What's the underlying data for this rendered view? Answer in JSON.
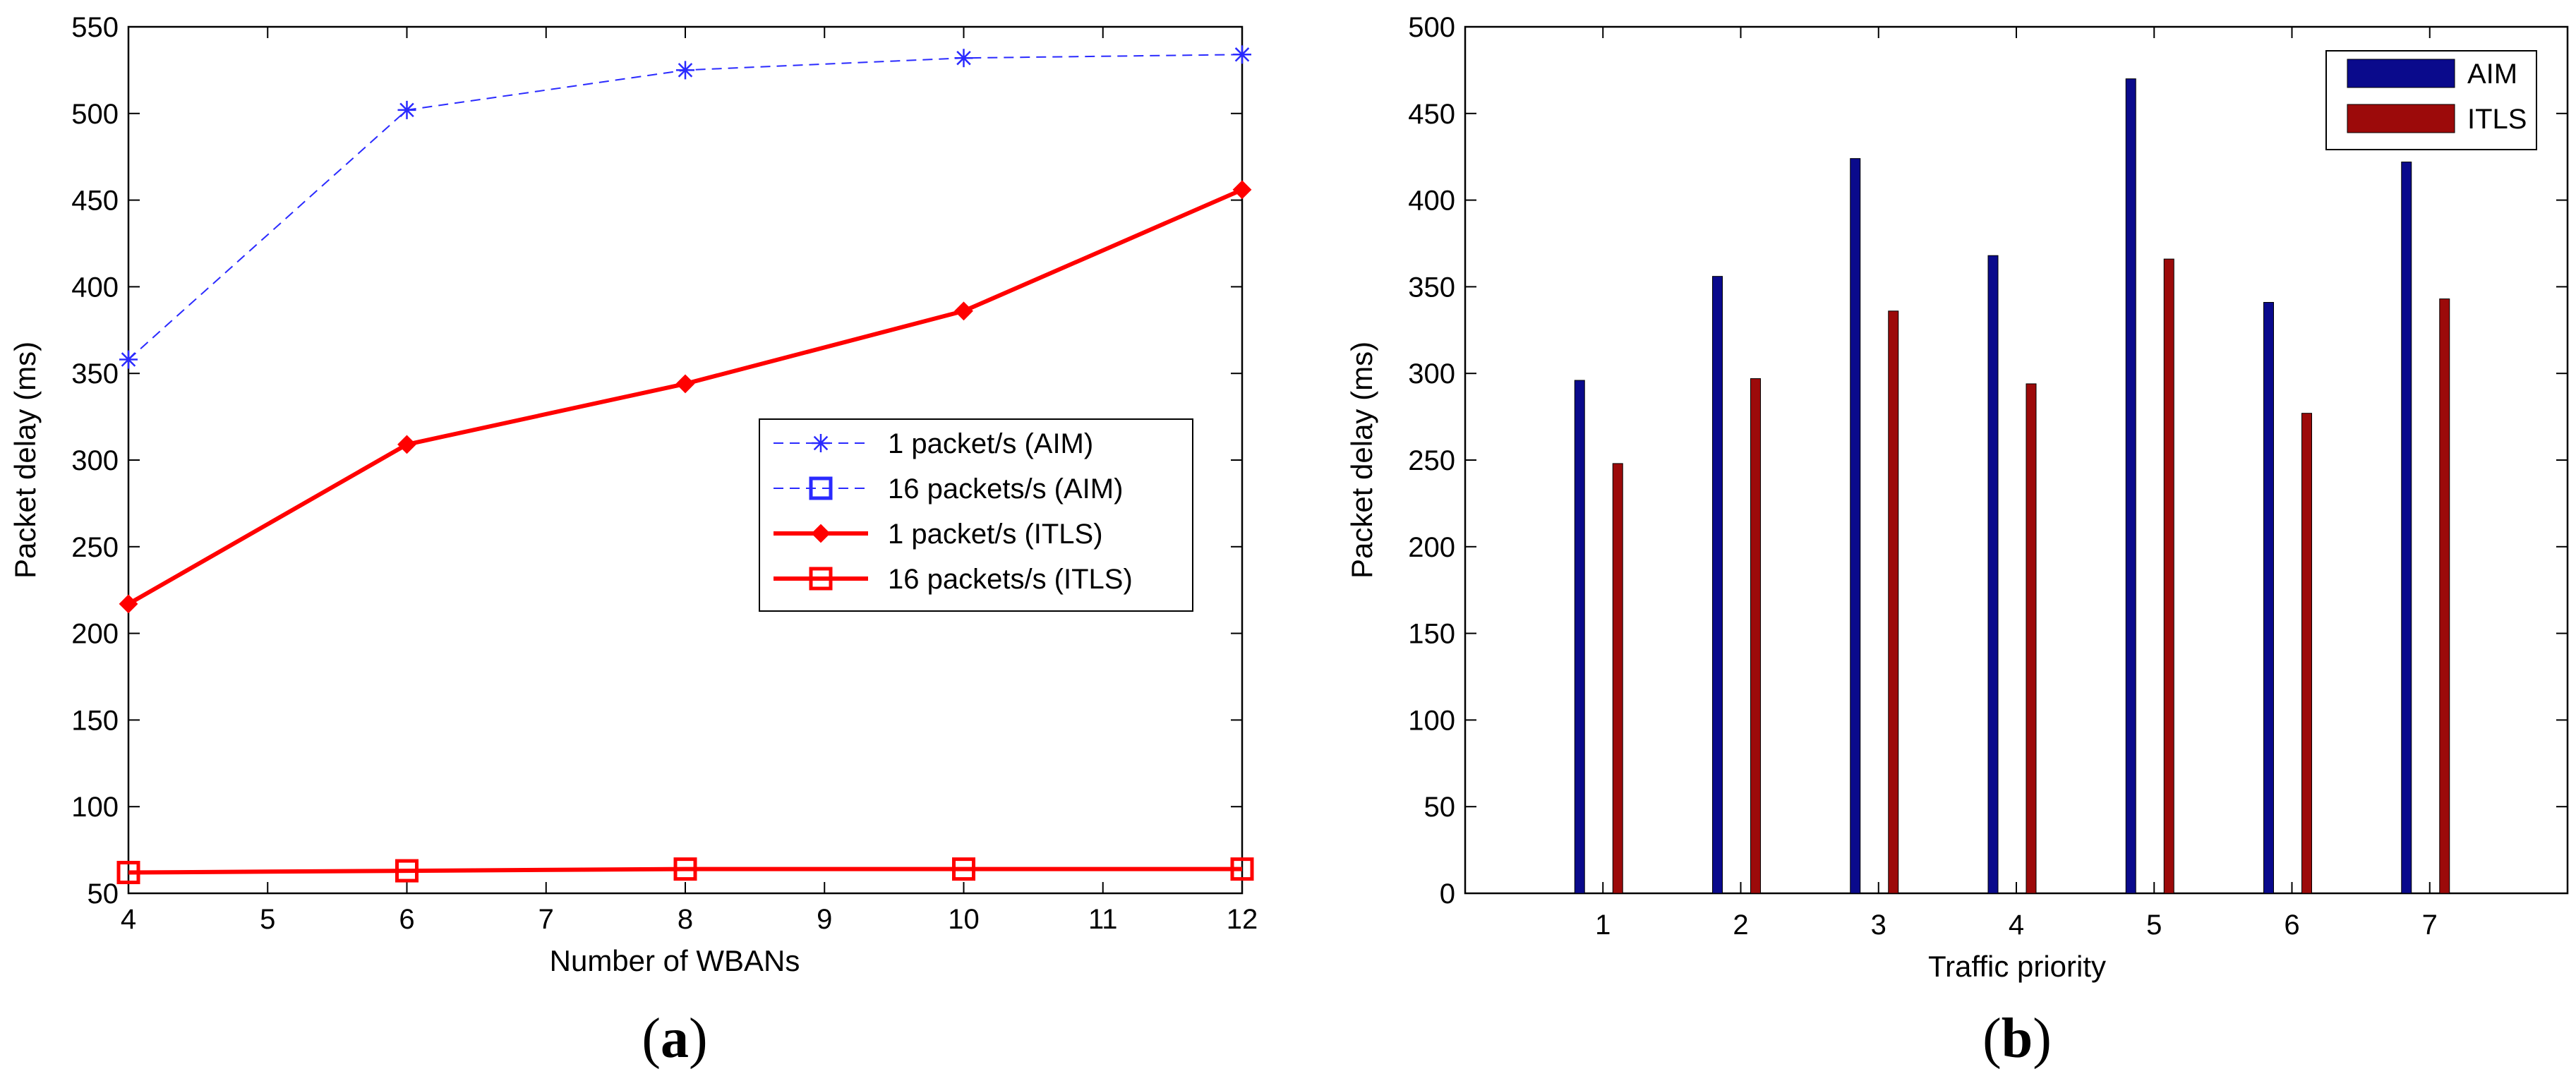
{
  "chart_data": [
    {
      "type": "line",
      "panel_label": {
        "open": "(",
        "letter": "a",
        "close": ")"
      },
      "xlabel": "Number of WBANs",
      "ylabel": "Packet delay (ms)",
      "xlim": [
        4,
        12
      ],
      "ylim": [
        50,
        550
      ],
      "xticks": [
        4,
        5,
        6,
        7,
        8,
        9,
        10,
        11,
        12
      ],
      "yticks": [
        50,
        100,
        150,
        200,
        250,
        300,
        350,
        400,
        450,
        500,
        550
      ],
      "x": [
        4,
        6,
        8,
        10,
        12
      ],
      "legend_position": "center-right",
      "series": [
        {
          "name": "1 packet/s (AIM)",
          "values": [
            358,
            502,
            525,
            532,
            534
          ],
          "color": "#2a2aff",
          "style": "dashed",
          "marker": "star"
        },
        {
          "name": "16 packets/s (AIM)",
          "values": [
            null,
            null,
            null,
            null,
            null
          ],
          "color": "#2a2aff",
          "style": "dashed",
          "marker": "square"
        },
        {
          "name": "1 packet/s (ITLS)",
          "values": [
            217,
            309,
            344,
            386,
            456
          ],
          "color": "#ff0000",
          "style": "solid",
          "marker": "diamond"
        },
        {
          "name": "16 packets/s (ITLS)",
          "values": [
            62,
            63,
            64,
            64,
            64
          ],
          "color": "#ff0000",
          "style": "solid",
          "marker": "square"
        }
      ]
    },
    {
      "type": "bar",
      "panel_label": {
        "open": "(",
        "letter": "b",
        "close": ")"
      },
      "xlabel": "Traffic priority",
      "ylabel": "Packet delay (ms)",
      "categories": [
        "1",
        "2",
        "3",
        "4",
        "5",
        "6",
        "7"
      ],
      "ylim": [
        0,
        500
      ],
      "yticks": [
        0,
        50,
        100,
        150,
        200,
        250,
        300,
        350,
        400,
        450,
        500
      ],
      "legend_position": "top-right",
      "series": [
        {
          "name": "AIM",
          "values": [
            296,
            356,
            424,
            368,
            470,
            341,
            422
          ],
          "color": "#0a0a8c"
        },
        {
          "name": "ITLS",
          "values": [
            248,
            297,
            336,
            294,
            366,
            277,
            343
          ],
          "color": "#9c0a0a"
        }
      ]
    }
  ]
}
